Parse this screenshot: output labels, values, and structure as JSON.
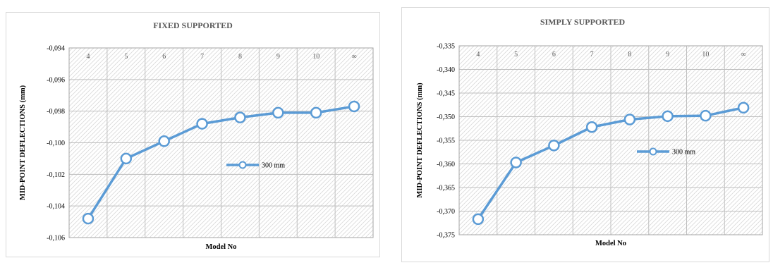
{
  "colors": {
    "series": "#5B9BD5",
    "grid": "#bfbfbf",
    "hatch": "#d9d9d9"
  },
  "chart_data": [
    {
      "type": "line",
      "title": "FIXED SUPPORTED",
      "xlabel": "Model No",
      "ylabel": "MID-POINT DEFLECTIONS (mm)",
      "categories": [
        "4",
        "5",
        "6",
        "7",
        "8",
        "9",
        "10",
        "∞"
      ],
      "ylim": [
        -0.106,
        -0.094
      ],
      "yticks": [
        "-0,094",
        "-0,096",
        "-0,098",
        "-0,100",
        "-0,102",
        "-0,104",
        "-0,106"
      ],
      "yticks_values": [
        -0.094,
        -0.096,
        -0.098,
        -0.1,
        -0.102,
        -0.104,
        -0.106
      ],
      "grid": true,
      "legend_position": "inside-right",
      "series": [
        {
          "name": "300 mm",
          "values": [
            -0.1048,
            -0.101,
            -0.0999,
            -0.0988,
            -0.0984,
            -0.0981,
            -0.0981,
            -0.0977
          ]
        }
      ]
    },
    {
      "type": "line",
      "title": "SIMPLY SUPPORTED",
      "xlabel": "Model No",
      "ylabel": "MID-POINT DEFLECTIONS (mm)",
      "categories": [
        "4",
        "5",
        "6",
        "7",
        "8",
        "9",
        "10",
        "∞"
      ],
      "ylim": [
        -0.375,
        -0.335
      ],
      "yticks": [
        "-0,335",
        "-0,340",
        "-0,345",
        "-0,350",
        "-0,355",
        "-0,360",
        "-0,365",
        "-0,370",
        "-0,375"
      ],
      "yticks_values": [
        -0.335,
        -0.34,
        -0.345,
        -0.35,
        -0.355,
        -0.36,
        -0.365,
        -0.37,
        -0.375
      ],
      "grid": true,
      "legend_position": "inside-right",
      "series": [
        {
          "name": "300 mm",
          "values": [
            -0.3717,
            -0.3597,
            -0.3561,
            -0.3522,
            -0.3506,
            -0.3499,
            -0.3498,
            -0.3481
          ]
        }
      ]
    }
  ]
}
